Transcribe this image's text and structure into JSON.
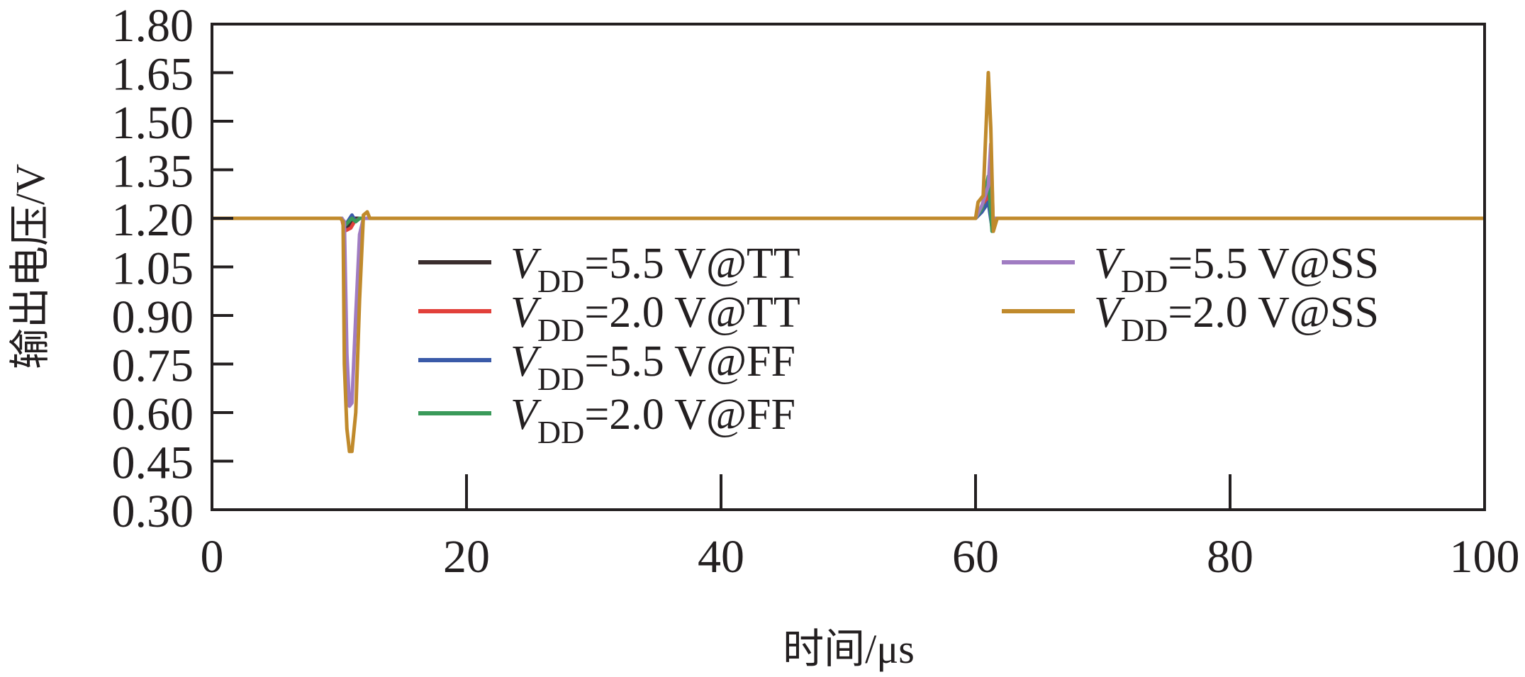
{
  "chart_data": {
    "type": "line",
    "title": "",
    "xlabel": "时间/μs",
    "ylabel": "输出电压/V",
    "xlim": [
      0,
      100
    ],
    "ylim": [
      0.3,
      1.8
    ],
    "xticks": [
      "0",
      "20",
      "40",
      "60",
      "80",
      "100"
    ],
    "yticks": [
      "1.80",
      "1.65",
      "1.50",
      "1.35",
      "1.20",
      "1.05",
      "0.90",
      "0.75",
      "0.60",
      "0.45",
      "0.30"
    ],
    "grid": false,
    "legend_placement": "center, two columns",
    "series": [
      {
        "name": "VDD=5.5 V@TT",
        "label": {
          "var": "V",
          "sub": "DD",
          "rest": "=5.5 V@TT"
        },
        "color": "#3b2e2e",
        "points": [
          [
            0,
            1.2
          ],
          [
            10.2,
            1.2
          ],
          [
            10.4,
            1.17
          ],
          [
            10.8,
            1.18
          ],
          [
            11.2,
            1.2
          ],
          [
            11.6,
            1.2
          ],
          [
            60,
            1.2
          ],
          [
            60.5,
            1.23
          ],
          [
            61,
            1.27
          ],
          [
            61.3,
            1.18
          ],
          [
            61.6,
            1.2
          ],
          [
            100,
            1.2
          ]
        ]
      },
      {
        "name": "VDD=2.0 V@TT",
        "label": {
          "var": "V",
          "sub": "DD",
          "rest": "=2.0 V@TT"
        },
        "color": "#e2403a",
        "points": [
          [
            0,
            1.2
          ],
          [
            10.2,
            1.2
          ],
          [
            10.4,
            1.16
          ],
          [
            10.9,
            1.17
          ],
          [
            11.2,
            1.19
          ],
          [
            11.6,
            1.2
          ],
          [
            60,
            1.2
          ],
          [
            60.5,
            1.22
          ],
          [
            61,
            1.28
          ],
          [
            61.3,
            1.18
          ],
          [
            61.6,
            1.2
          ],
          [
            100,
            1.2
          ]
        ]
      },
      {
        "name": "VDD=5.5 V@FF",
        "label": {
          "var": "V",
          "sub": "DD",
          "rest": "=5.5 V@FF"
        },
        "color": "#3a5aa8",
        "points": [
          [
            0,
            1.2
          ],
          [
            10.2,
            1.2
          ],
          [
            10.5,
            1.18
          ],
          [
            11,
            1.21
          ],
          [
            11.3,
            1.19
          ],
          [
            11.6,
            1.2
          ],
          [
            60,
            1.2
          ],
          [
            60.5,
            1.22
          ],
          [
            61,
            1.25
          ],
          [
            61.3,
            1.17
          ],
          [
            61.6,
            1.2
          ],
          [
            100,
            1.2
          ]
        ]
      },
      {
        "name": "VDD=2.0 V@FF",
        "label": {
          "var": "V",
          "sub": "DD",
          "rest": "=2.0 V@FF"
        },
        "color": "#3a9a5a",
        "points": [
          [
            0,
            1.2
          ],
          [
            10.2,
            1.2
          ],
          [
            10.5,
            1.18
          ],
          [
            11,
            1.2
          ],
          [
            11.3,
            1.19
          ],
          [
            11.6,
            1.2
          ],
          [
            60,
            1.2
          ],
          [
            60.5,
            1.23
          ],
          [
            61,
            1.33
          ],
          [
            61.3,
            1.16
          ],
          [
            61.6,
            1.2
          ],
          [
            100,
            1.2
          ]
        ]
      },
      {
        "name": "VDD=5.5 V@SS",
        "label": {
          "var": "V",
          "sub": "DD",
          "rest": "=5.5 V@SS"
        },
        "color": "#a07cc2",
        "points": [
          [
            0,
            1.2
          ],
          [
            10.2,
            1.2
          ],
          [
            10.4,
            1.19
          ],
          [
            10.6,
            0.78
          ],
          [
            10.8,
            0.62
          ],
          [
            11.0,
            0.63
          ],
          [
            11.3,
            0.9
          ],
          [
            11.6,
            1.15
          ],
          [
            11.9,
            1.2
          ],
          [
            60,
            1.2
          ],
          [
            60.5,
            1.24
          ],
          [
            61,
            1.3
          ],
          [
            61.2,
            1.43
          ],
          [
            61.4,
            1.17
          ],
          [
            61.6,
            1.2
          ],
          [
            100,
            1.2
          ]
        ]
      },
      {
        "name": "VDD=2.0 V@SS",
        "label": {
          "var": "V",
          "sub": "DD",
          "rest": "=2.0 V@SS"
        },
        "color": "#c08a2c",
        "points": [
          [
            0,
            1.2
          ],
          [
            10.1,
            1.2
          ],
          [
            10.3,
            1.19
          ],
          [
            10.4,
            0.75
          ],
          [
            10.6,
            0.55
          ],
          [
            10.8,
            0.48
          ],
          [
            11.0,
            0.48
          ],
          [
            11.3,
            0.6
          ],
          [
            11.6,
            0.95
          ],
          [
            11.9,
            1.21
          ],
          [
            12.2,
            1.22
          ],
          [
            12.4,
            1.2
          ],
          [
            60,
            1.2
          ],
          [
            60.2,
            1.25
          ],
          [
            60.6,
            1.27
          ],
          [
            61,
            1.65
          ],
          [
            61.2,
            1.48
          ],
          [
            61.4,
            1.16
          ],
          [
            61.7,
            1.2
          ],
          [
            100,
            1.2
          ]
        ]
      }
    ]
  }
}
